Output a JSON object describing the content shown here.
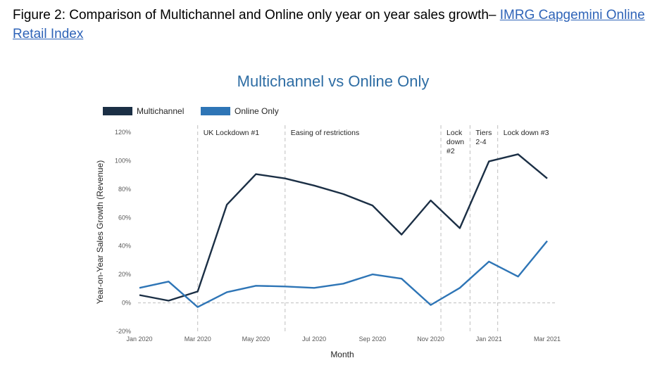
{
  "figure": {
    "caption_prefix": "Figure 2: Comparison of Multichannel and Online only year on year sales growth– ",
    "caption_link": "IMRG Capgemini Online Retail Index"
  },
  "chart_data": {
    "type": "line",
    "title": "Multichannel vs Online Only",
    "xlabel": "Month",
    "ylabel": "Year-on-Year Sales Growth (Revenue)",
    "ylim": [
      -20,
      120
    ],
    "yticks": [
      -20,
      0,
      20,
      40,
      60,
      80,
      100,
      120
    ],
    "ytick_labels": [
      "-20%",
      "0%",
      "20%",
      "40%",
      "60%",
      "80%",
      "100%",
      "120%"
    ],
    "x": [
      "Jan 2020",
      "Feb 2020",
      "Mar 2020",
      "Apr 2020",
      "May 2020",
      "Jun 2020",
      "Jul 2020",
      "Aug 2020",
      "Sep 2020",
      "Oct 2020",
      "Nov 2020",
      "Dec 2020",
      "Jan 2021",
      "Feb 2021",
      "Mar 2021"
    ],
    "xtick_labels": [
      "Jan 2020",
      "",
      "Mar 2020",
      "",
      "May 2020",
      "",
      "Jul 2020",
      "",
      "Sep 2020",
      "",
      "Nov 2020",
      "",
      "Jan 2021",
      "",
      "Mar 2021"
    ],
    "legend_position": "top-left",
    "grid": false,
    "series": [
      {
        "name": "Multichannel",
        "color": "#1b2f45",
        "values": [
          5.5,
          1.5,
          8,
          69,
          90.5,
          87.5,
          82.5,
          76.5,
          68.5,
          48,
          72,
          52.5,
          99.5,
          104.5,
          87.5
        ]
      },
      {
        "name": "Online Only",
        "color": "#2e75b6",
        "values": [
          10.5,
          15,
          -3,
          7.5,
          12,
          11.5,
          10.5,
          13.5,
          20,
          17,
          -1.5,
          10.5,
          29,
          18.5,
          43.5
        ]
      }
    ],
    "annotations": [
      {
        "x": 2.0,
        "lines": [
          "UK Lockdown #1"
        ]
      },
      {
        "x": 5.0,
        "lines": [
          "Easing of restrictions"
        ]
      },
      {
        "x": 10.35,
        "lines": [
          "Lock",
          "down",
          "#2"
        ]
      },
      {
        "x": 11.35,
        "lines": [
          "Tiers",
          "2-4"
        ]
      },
      {
        "x": 12.3,
        "lines": [
          "Lock down #3"
        ]
      }
    ]
  }
}
